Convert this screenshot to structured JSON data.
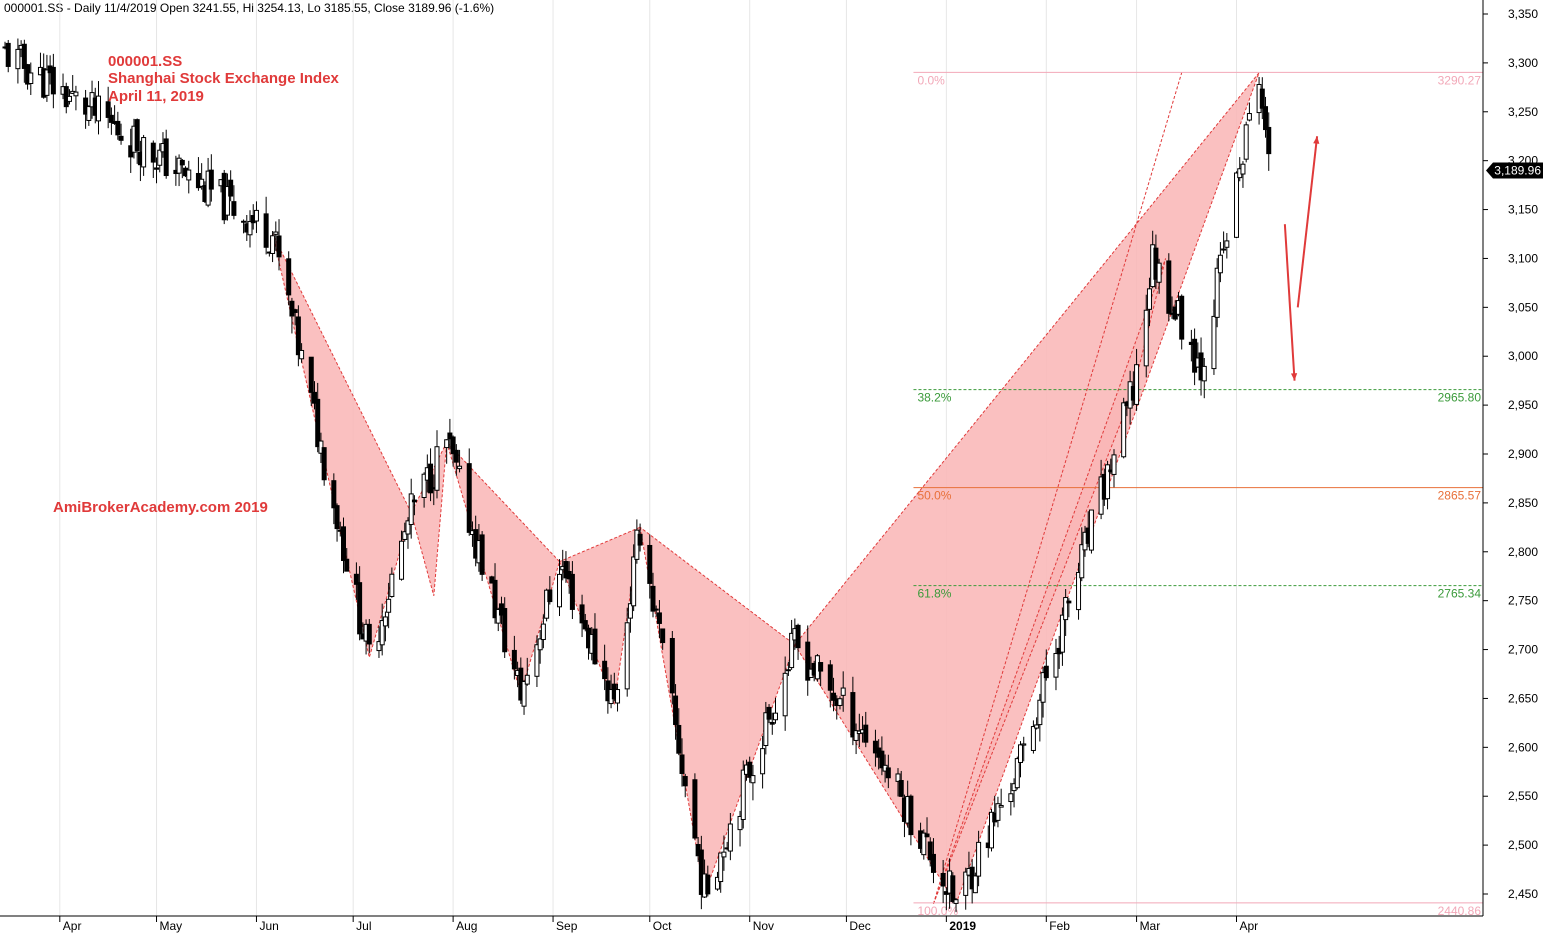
{
  "header": {
    "symbol_line": "000001.SS - Daily 11/4/2019 Open 3241.55, Hi 3254.13, Lo 3185.55, Close 3189.96 (-1.6%)"
  },
  "annotations": {
    "symbol": "000001.SS",
    "name": "Shanghai Stock Exchange Index",
    "date": "April 11, 2019",
    "watermark": "AmiBrokerAcademy.com   2019"
  },
  "last_price_label": "3,189.96",
  "colors": {
    "pattern_fill": "#f9b5b5",
    "pattern_stroke": "#e03a3a",
    "fib_green": "#3a9a3a",
    "fib_orange": "#e8703a",
    "fib_pink": "#f2a8b8",
    "arrow_red": "#e03a3a",
    "annotation_red": "#e03a3a"
  },
  "chart_data": {
    "type": "candlestick",
    "y_axis": {
      "min": 2440,
      "max": 3350,
      "ticks": [
        2450,
        2500,
        2550,
        2600,
        2650,
        2700,
        2750,
        2800,
        2850,
        2900,
        2950,
        3000,
        3050,
        3100,
        3150,
        3200,
        3250,
        3300,
        3350
      ],
      "tick_labels": [
        "2,450",
        "2,500",
        "2,550",
        "2,600",
        "2,650",
        "2,700",
        "2,750",
        "2,800",
        "2,850",
        "2,900",
        "2,950",
        "3,000",
        "3,050",
        "3,100",
        "3,150",
        "3,200",
        "3,250",
        "3,300",
        "3,350"
      ]
    },
    "x_axis": {
      "start": "2018-03-15",
      "end": "2019-04-30",
      "labels": [
        {
          "date": "2018-04-01",
          "label": "Apr",
          "bold": false
        },
        {
          "date": "2018-05-01",
          "label": "May",
          "bold": false
        },
        {
          "date": "2018-06-01",
          "label": "Jun",
          "bold": false
        },
        {
          "date": "2018-07-01",
          "label": "Jul",
          "bold": false
        },
        {
          "date": "2018-08-01",
          "label": "Aug",
          "bold": false
        },
        {
          "date": "2018-09-01",
          "label": "Sep",
          "bold": false
        },
        {
          "date": "2018-10-01",
          "label": "Oct",
          "bold": false
        },
        {
          "date": "2018-11-01",
          "label": "Nov",
          "bold": false
        },
        {
          "date": "2018-12-01",
          "label": "Dec",
          "bold": false
        },
        {
          "date": "2019-01-01",
          "label": "2019",
          "bold": true
        },
        {
          "date": "2019-02-01",
          "label": "Feb",
          "bold": false
        },
        {
          "date": "2019-03-01",
          "label": "Mar",
          "bold": false
        },
        {
          "date": "2019-04-01",
          "label": "Apr",
          "bold": false
        }
      ]
    },
    "pivots": [
      {
        "date": "2018-03-15",
        "price": 3310
      },
      {
        "date": "2018-06-06",
        "price": 3125
      },
      {
        "date": "2018-07-06",
        "price": 2692
      },
      {
        "date": "2018-07-19",
        "price": 2840
      },
      {
        "date": "2018-07-30",
        "price": 2912
      },
      {
        "date": "2018-08-22",
        "price": 2655
      },
      {
        "date": "2018-09-03",
        "price": 2790
      },
      {
        "date": "2018-09-20",
        "price": 2645
      },
      {
        "date": "2018-09-28",
        "price": 2825
      },
      {
        "date": "2018-10-18",
        "price": 2450
      },
      {
        "date": "2018-11-15",
        "price": 2705
      },
      {
        "date": "2018-12-10",
        "price": 2600
      },
      {
        "date": "2019-01-04",
        "price": 2440
      },
      {
        "date": "2019-01-24",
        "price": 2585
      },
      {
        "date": "2019-02-28",
        "price": 2965
      },
      {
        "date": "2019-03-06",
        "price": 3100
      },
      {
        "date": "2019-03-21",
        "price": 2990
      },
      {
        "date": "2019-04-08",
        "price": 3290
      },
      {
        "date": "2019-04-11",
        "price": 3190
      }
    ],
    "patterns": [
      {
        "points": [
          {
            "date": "2018-06-06",
            "price": 3125
          },
          {
            "date": "2018-07-06",
            "price": 2692
          },
          {
            "date": "2018-07-19",
            "price": 2840
          }
        ]
      },
      {
        "points": [
          {
            "date": "2018-07-19",
            "price": 2840
          },
          {
            "date": "2018-07-26",
            "price": 2755
          },
          {
            "date": "2018-07-30",
            "price": 2912
          }
        ]
      },
      {
        "points": [
          {
            "date": "2018-07-30",
            "price": 2912
          },
          {
            "date": "2018-08-22",
            "price": 2655
          },
          {
            "date": "2018-09-03",
            "price": 2790
          }
        ]
      },
      {
        "points": [
          {
            "date": "2018-09-03",
            "price": 2790
          },
          {
            "date": "2018-09-20",
            "price": 2645
          },
          {
            "date": "2018-09-28",
            "price": 2825
          }
        ]
      },
      {
        "points": [
          {
            "date": "2018-09-28",
            "price": 2825
          },
          {
            "date": "2018-10-18",
            "price": 2450
          },
          {
            "date": "2018-11-15",
            "price": 2705
          }
        ]
      },
      {
        "points": [
          {
            "date": "2018-11-15",
            "price": 2705
          },
          {
            "date": "2019-01-04",
            "price": 2440
          },
          {
            "date": "2019-04-08",
            "price": 3290
          }
        ]
      },
      {
        "points": [
          {
            "date": "2018-12-28",
            "price": 2440
          },
          {
            "date": "2019-02-28",
            "price": 2965
          },
          {
            "date": "2019-03-10",
            "price": 3100
          }
        ]
      }
    ],
    "trendline": [
      {
        "date": "2018-12-28",
        "price": 2440
      },
      {
        "date": "2019-03-15",
        "price": 3290
      }
    ],
    "fib_levels": [
      {
        "pct": "0.0%",
        "price": 3290.27,
        "price_label": "3290.27",
        "color": "#f2a8b8",
        "dashed": false
      },
      {
        "pct": "38.2%",
        "price": 2965.8,
        "price_label": "2965.80",
        "color": "#3a9a3a",
        "dashed": true
      },
      {
        "pct": "50.0%",
        "price": 2865.57,
        "price_label": "2865.57",
        "color": "#e8703a",
        "dashed": false
      },
      {
        "pct": "61.8%",
        "price": 2765.34,
        "price_label": "2765.34",
        "color": "#3a9a3a",
        "dashed": true
      },
      {
        "pct": "100.0%",
        "price": 2440.86,
        "price_label": "2440.86",
        "color": "#f2a8b8",
        "dashed": false
      }
    ],
    "fib_start_date": "2018-12-28",
    "arrows": [
      {
        "from": {
          "date": "2019-04-16",
          "price": 3135
        },
        "to": {
          "date": "2019-04-19",
          "price": 2975
        }
      },
      {
        "from": {
          "date": "2019-04-20",
          "price": 3050
        },
        "to": {
          "date": "2019-04-26",
          "price": 3225
        }
      }
    ],
    "last_close": 3189.96
  }
}
